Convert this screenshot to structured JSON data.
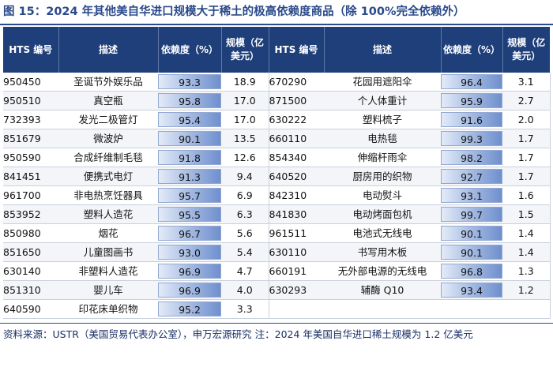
{
  "title": "图 15：2024 年其他美自华进口规模大于稀土的极高依赖度商品（除 100%完全依赖外）",
  "columns": {
    "hts": "HTS 编号",
    "desc": "描述",
    "dep": "依赖度（%）",
    "size": "规模（亿美元）"
  },
  "left_rows": [
    {
      "hts": "950450",
      "desc": "圣诞节外娱乐品",
      "dep": "93.3",
      "size": "18.9"
    },
    {
      "hts": "950510",
      "desc": "真空瓶",
      "dep": "95.8",
      "size": "17.0"
    },
    {
      "hts": "732393",
      "desc": "发光二极管灯",
      "dep": "95.4",
      "size": "17.0"
    },
    {
      "hts": "851679",
      "desc": "微波炉",
      "dep": "90.1",
      "size": "13.5"
    },
    {
      "hts": "950590",
      "desc": "合成纤维制毛毯",
      "dep": "91.8",
      "size": "12.6"
    },
    {
      "hts": "841451",
      "desc": "便携式电灯",
      "dep": "91.3",
      "size": "9.4"
    },
    {
      "hts": "961700",
      "desc": "非电热烹饪器具",
      "dep": "95.7",
      "size": "6.9"
    },
    {
      "hts": "853952",
      "desc": "塑料人造花",
      "dep": "95.5",
      "size": "6.3"
    },
    {
      "hts": "850980",
      "desc": "烟花",
      "dep": "96.7",
      "size": "5.6"
    },
    {
      "hts": "851650",
      "desc": "儿童图画书",
      "dep": "93.0",
      "size": "5.4"
    },
    {
      "hts": "630140",
      "desc": "非塑料人造花",
      "dep": "96.9",
      "size": "4.7"
    },
    {
      "hts": "851310",
      "desc": "婴儿车",
      "dep": "96.9",
      "size": "4.0"
    },
    {
      "hts": "640590",
      "desc": "印花床单织物",
      "dep": "95.2",
      "size": "3.3"
    }
  ],
  "right_rows": [
    {
      "hts": "670290",
      "desc": "花园用遮阳伞",
      "dep": "96.4",
      "size": "3.1"
    },
    {
      "hts": "871500",
      "desc": "个人体重计",
      "dep": "95.9",
      "size": "2.7"
    },
    {
      "hts": "630222",
      "desc": "塑料梳子",
      "dep": "91.6",
      "size": "2.0"
    },
    {
      "hts": "660110",
      "desc": "电热毯",
      "dep": "99.3",
      "size": "1.7"
    },
    {
      "hts": "854340",
      "desc": "伸缩杆雨伞",
      "dep": "98.2",
      "size": "1.7"
    },
    {
      "hts": "640520",
      "desc": "厨房用的织物",
      "dep": "92.7",
      "size": "1.7"
    },
    {
      "hts": "842310",
      "desc": "电动熨斗",
      "dep": "93.1",
      "size": "1.6"
    },
    {
      "hts": "841830",
      "desc": "电动烤面包机",
      "dep": "99.7",
      "size": "1.5"
    },
    {
      "hts": "961511",
      "desc": "电池式无线电",
      "dep": "90.1",
      "size": "1.4"
    },
    {
      "hts": "630110",
      "desc": "书写用木板",
      "dep": "90.1",
      "size": "1.4"
    },
    {
      "hts": "660191",
      "desc": "无外部电源的无线电",
      "dep": "96.8",
      "size": "1.3"
    },
    {
      "hts": "630293",
      "desc": "辅酶 Q10",
      "dep": "93.4",
      "size": "1.2"
    }
  ],
  "footer": "资料来源：USTR（美国贸易代表办公室），申万宏源研究 注：2024 年美国自华进口稀土规模为 1.2 亿美元"
}
